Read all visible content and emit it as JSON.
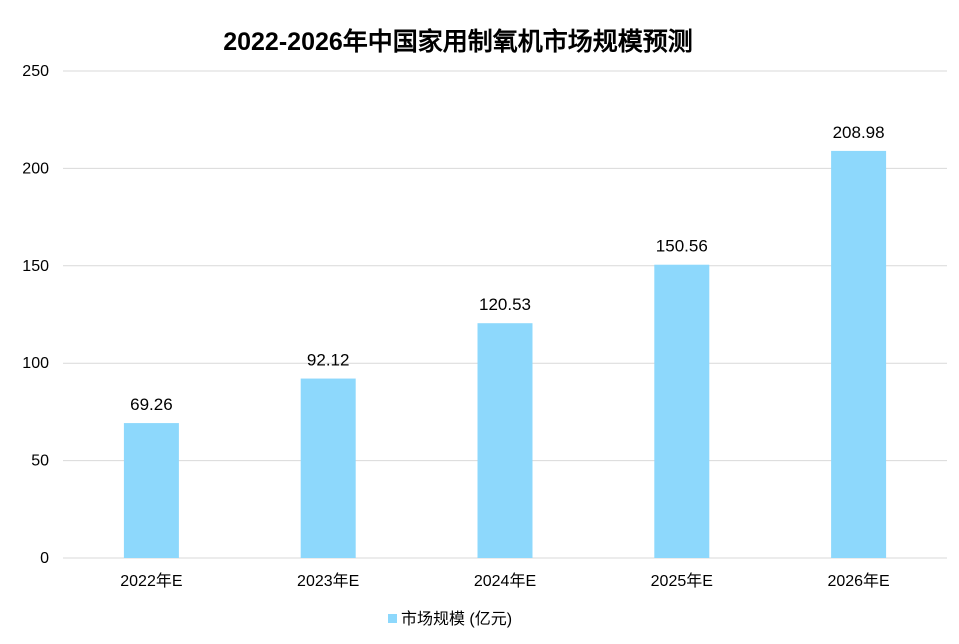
{
  "chart_data": {
    "type": "bar",
    "title": "2022-2026年中国家用制氧机市场规模预测",
    "categories": [
      "2022年E",
      "2023年E",
      "2024年E",
      "2025年E",
      "2026年E"
    ],
    "series": [
      {
        "name": "市场规模 (亿元)",
        "values": [
          69.26,
          92.12,
          120.53,
          150.56,
          208.98
        ],
        "data_labels": [
          "69.26",
          "92.12",
          "120.53",
          "150.56",
          "208.98"
        ],
        "color": "#8dd8fc"
      }
    ],
    "y_ticks": [
      "0",
      "50",
      "100",
      "150",
      "200",
      "250"
    ],
    "ylim": [
      0,
      250
    ],
    "xlabel": "",
    "ylabel": "",
    "grid": true,
    "legend_position": "bottom",
    "colors": {
      "gridline": "#d9d9d9",
      "axis": "#d9d9d9"
    }
  }
}
